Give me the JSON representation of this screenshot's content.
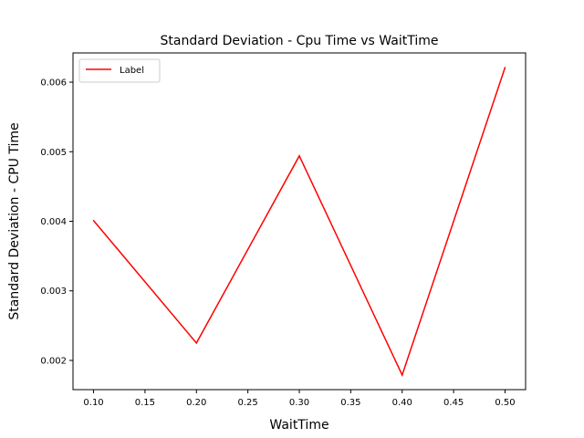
{
  "chart_data": {
    "type": "line",
    "title": "Standard Deviation - Cpu Time vs WaitTime",
    "xlabel": "WaitTime",
    "ylabel": "Standard Deviation - CPU Time",
    "xlim": [
      0.08,
      0.52
    ],
    "ylim": [
      0.00158,
      0.00642
    ],
    "xticks": [
      0.1,
      0.15,
      0.2,
      0.25,
      0.3,
      0.35,
      0.4,
      0.45,
      0.5
    ],
    "xtick_labels": [
      "0.10",
      "0.15",
      "0.20",
      "0.25",
      "0.30",
      "0.35",
      "0.40",
      "0.45",
      "0.50"
    ],
    "yticks": [
      0.002,
      0.003,
      0.004,
      0.005,
      0.006
    ],
    "ytick_labels": [
      "0.002",
      "0.003",
      "0.004",
      "0.005",
      "0.006"
    ],
    "grid": false,
    "legend_position": "top-left",
    "series": [
      {
        "name": "Label",
        "color": "#ff0000",
        "x": [
          0.1,
          0.2,
          0.3,
          0.4,
          0.5
        ],
        "y": [
          0.00401,
          0.00225,
          0.00494,
          0.00179,
          0.00621
        ]
      }
    ]
  }
}
